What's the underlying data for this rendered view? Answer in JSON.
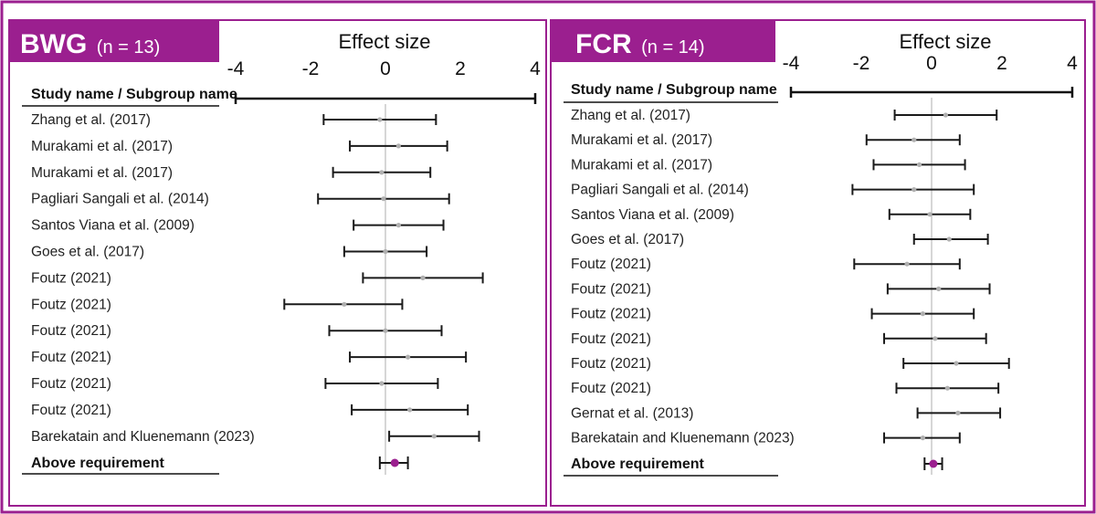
{
  "colors": {
    "accent": "#9b1f8f",
    "line": "#1a1a1a",
    "zero_line": "#c8c8c8",
    "point": "#b0b0b0",
    "summary": "#9b1f8f"
  },
  "chart_data": [
    {
      "type": "forest",
      "panel_title": "BWG",
      "panel_n": "(n = 13)",
      "title": "Effect size",
      "xlim": [
        -4,
        4
      ],
      "xticks": [
        "-4",
        "-2",
        "0",
        "2",
        "4"
      ],
      "column_header": "Study name / Subgroup name",
      "studies": [
        {
          "name": "Zhang et al. (2017)",
          "estimate": -0.15,
          "lower": -1.65,
          "upper": 1.35
        },
        {
          "name": "Murakami et al. (2017)",
          "estimate": 0.35,
          "lower": -0.95,
          "upper": 1.65
        },
        {
          "name": "Murakami et al. (2017)",
          "estimate": -0.1,
          "lower": -1.4,
          "upper": 1.2
        },
        {
          "name": "Pagliari Sangali et al. (2014)",
          "estimate": -0.05,
          "lower": -1.8,
          "upper": 1.7
        },
        {
          "name": "Santos Viana et al. (2009)",
          "estimate": 0.35,
          "lower": -0.85,
          "upper": 1.55
        },
        {
          "name": "Goes et al. (2017)",
          "estimate": 0.0,
          "lower": -1.1,
          "upper": 1.1
        },
        {
          "name": "Foutz (2021)",
          "estimate": 1.0,
          "lower": -0.6,
          "upper": 2.6
        },
        {
          "name": "Foutz (2021)",
          "estimate": -1.1,
          "lower": -2.7,
          "upper": 0.45
        },
        {
          "name": "Foutz (2021)",
          "estimate": 0.0,
          "lower": -1.5,
          "upper": 1.5
        },
        {
          "name": "Foutz (2021)",
          "estimate": 0.6,
          "lower": -0.95,
          "upper": 2.15
        },
        {
          "name": "Foutz (2021)",
          "estimate": -0.1,
          "lower": -1.6,
          "upper": 1.4
        },
        {
          "name": "Foutz (2021)",
          "estimate": 0.65,
          "lower": -0.9,
          "upper": 2.2
        },
        {
          "name": "Barekatain and Kluenemann (2023)",
          "estimate": 1.3,
          "lower": 0.1,
          "upper": 2.5
        }
      ],
      "summary": {
        "name": "Above requirement",
        "estimate": 0.25,
        "lower": -0.15,
        "upper": 0.6
      }
    },
    {
      "type": "forest",
      "panel_title": "FCR",
      "panel_n": "(n = 14)",
      "title": "Effect size",
      "xlim": [
        -4,
        4
      ],
      "xticks": [
        "-4",
        "-2",
        "0",
        "2",
        "4"
      ],
      "column_header": "Study name / Subgroup name",
      "studies": [
        {
          "name": "Zhang et al. (2017)",
          "estimate": 0.4,
          "lower": -1.05,
          "upper": 1.85
        },
        {
          "name": "Murakami et al. (2017)",
          "estimate": -0.5,
          "lower": -1.85,
          "upper": 0.8
        },
        {
          "name": "Murakami et al. (2017)",
          "estimate": -0.35,
          "lower": -1.65,
          "upper": 0.95
        },
        {
          "name": "Pagliari Sangali et al. (2014)",
          "estimate": -0.5,
          "lower": -2.25,
          "upper": 1.2
        },
        {
          "name": "Santos Viana et al. (2009)",
          "estimate": -0.05,
          "lower": -1.2,
          "upper": 1.1
        },
        {
          "name": "Goes et al. (2017)",
          "estimate": 0.5,
          "lower": -0.5,
          "upper": 1.6
        },
        {
          "name": "Foutz (2021)",
          "estimate": -0.7,
          "lower": -2.2,
          "upper": 0.8
        },
        {
          "name": "Foutz (2021)",
          "estimate": 0.2,
          "lower": -1.25,
          "upper": 1.65
        },
        {
          "name": "Foutz (2021)",
          "estimate": -0.25,
          "lower": -1.7,
          "upper": 1.2
        },
        {
          "name": "Foutz (2021)",
          "estimate": 0.1,
          "lower": -1.35,
          "upper": 1.55
        },
        {
          "name": "Foutz (2021)",
          "estimate": 0.7,
          "lower": -0.8,
          "upper": 2.2
        },
        {
          "name": "Foutz (2021)",
          "estimate": 0.45,
          "lower": -1.0,
          "upper": 1.9
        },
        {
          "name": "Gernat et al. (2013)",
          "estimate": 0.75,
          "lower": -0.4,
          "upper": 1.95
        },
        {
          "name": "Barekatain and Kluenemann (2023)",
          "estimate": -0.25,
          "lower": -1.35,
          "upper": 0.8
        }
      ],
      "summary": {
        "name": "Above requirement",
        "estimate": 0.05,
        "lower": -0.2,
        "upper": 0.3
      }
    }
  ]
}
